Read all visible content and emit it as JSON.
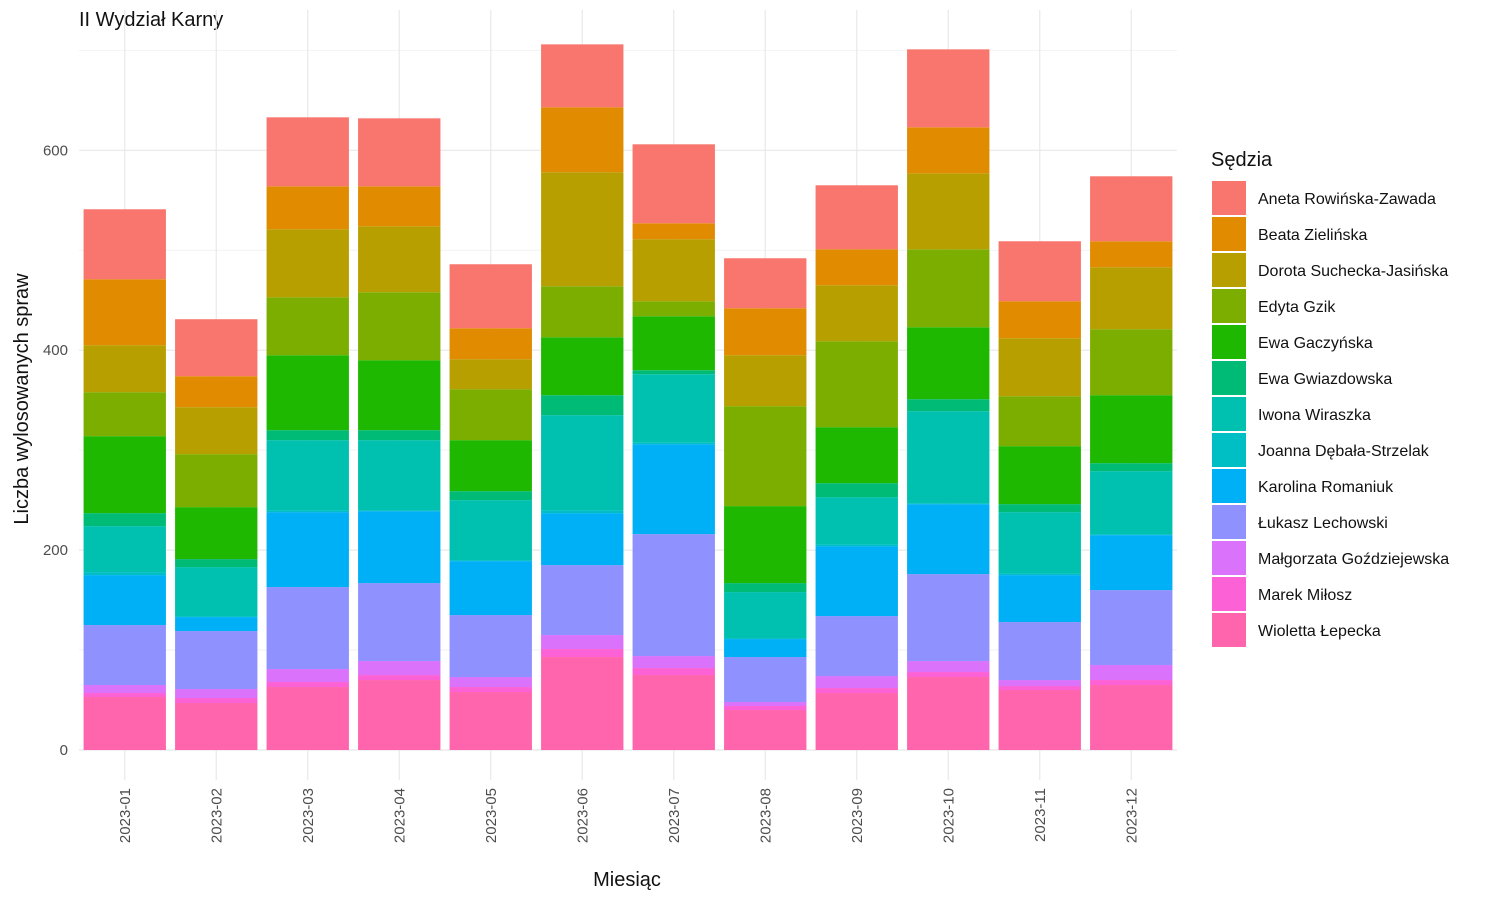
{
  "chart_data": {
    "type": "bar",
    "stacked": true,
    "title": "II Wydział Karny",
    "xlabel": "Miesiąc",
    "ylabel": "Liczba wylosowanych spraw",
    "ylim": [
      0,
      700
    ],
    "yticks": [
      0,
      200,
      400,
      600
    ],
    "grid": true,
    "legend_title": "Sędzia",
    "legend_position": "right",
    "categories": [
      "2023-01",
      "2023-02",
      "2023-03",
      "2023-04",
      "2023-05",
      "2023-06",
      "2023-07",
      "2023-08",
      "2023-09",
      "2023-10",
      "2023-11",
      "2023-12"
    ],
    "series": [
      {
        "name": "Wioletta Łepecka",
        "color": "#FF65AC",
        "values": [
          53,
          47,
          63,
          70,
          58,
          93,
          75,
          40,
          57,
          73,
          60,
          65
        ]
      },
      {
        "name": "Marek Miłosz",
        "color": "#FC61D5",
        "values": [
          4,
          5,
          5,
          5,
          5,
          8,
          7,
          4,
          5,
          5,
          4,
          5
        ]
      },
      {
        "name": "Małgorzata Goździejewska",
        "color": "#DB72FB",
        "values": [
          8,
          9,
          13,
          14,
          10,
          14,
          12,
          4,
          12,
          11,
          6,
          15
        ]
      },
      {
        "name": "Łukasz Lechowski",
        "color": "#8F91FF",
        "values": [
          60,
          58,
          82,
          78,
          62,
          70,
          122,
          45,
          60,
          87,
          58,
          75
        ]
      },
      {
        "name": "Karolina Romaniuk",
        "color": "#00B0F6",
        "values": [
          50,
          14,
          75,
          72,
          54,
          52,
          90,
          18,
          70,
          70,
          47,
          55
        ]
      },
      {
        "name": "Joanna Dębała-Strzelak",
        "color": "#00BFC4",
        "values": [
          3,
          1,
          2,
          1,
          1,
          3,
          2,
          1,
          2,
          1,
          2,
          1
        ]
      },
      {
        "name": "Iwona Wiraszka",
        "color": "#00C0AF",
        "values": [
          46,
          49,
          70,
          70,
          60,
          95,
          68,
          46,
          47,
          92,
          61,
          63
        ]
      },
      {
        "name": "Ewa Gwiazdowska",
        "color": "#00BB76",
        "values": [
          13,
          8,
          10,
          10,
          9,
          20,
          4,
          9,
          14,
          12,
          8,
          8
        ]
      },
      {
        "name": "Ewa Gaczyńska",
        "color": "#1FB800",
        "values": [
          77,
          52,
          75,
          70,
          51,
          58,
          54,
          77,
          56,
          72,
          58,
          68
        ]
      },
      {
        "name": "Edyta Gzik",
        "color": "#7CAE00",
        "values": [
          44,
          53,
          58,
          68,
          51,
          51,
          15,
          100,
          86,
          78,
          50,
          66
        ]
      },
      {
        "name": "Dorota Suchecka-Jasińska",
        "color": "#B79F00",
        "values": [
          47,
          47,
          68,
          66,
          30,
          114,
          62,
          51,
          56,
          76,
          58,
          62
        ]
      },
      {
        "name": "Beata Zielińska",
        "color": "#E08B00",
        "values": [
          66,
          31,
          43,
          40,
          31,
          65,
          16,
          47,
          36,
          46,
          37,
          26
        ]
      },
      {
        "name": "Aneta Rowińska-Zawada",
        "color": "#F8766D",
        "values": [
          70,
          57,
          69,
          68,
          64,
          63,
          79,
          50,
          64,
          78,
          60,
          65
        ]
      }
    ]
  }
}
